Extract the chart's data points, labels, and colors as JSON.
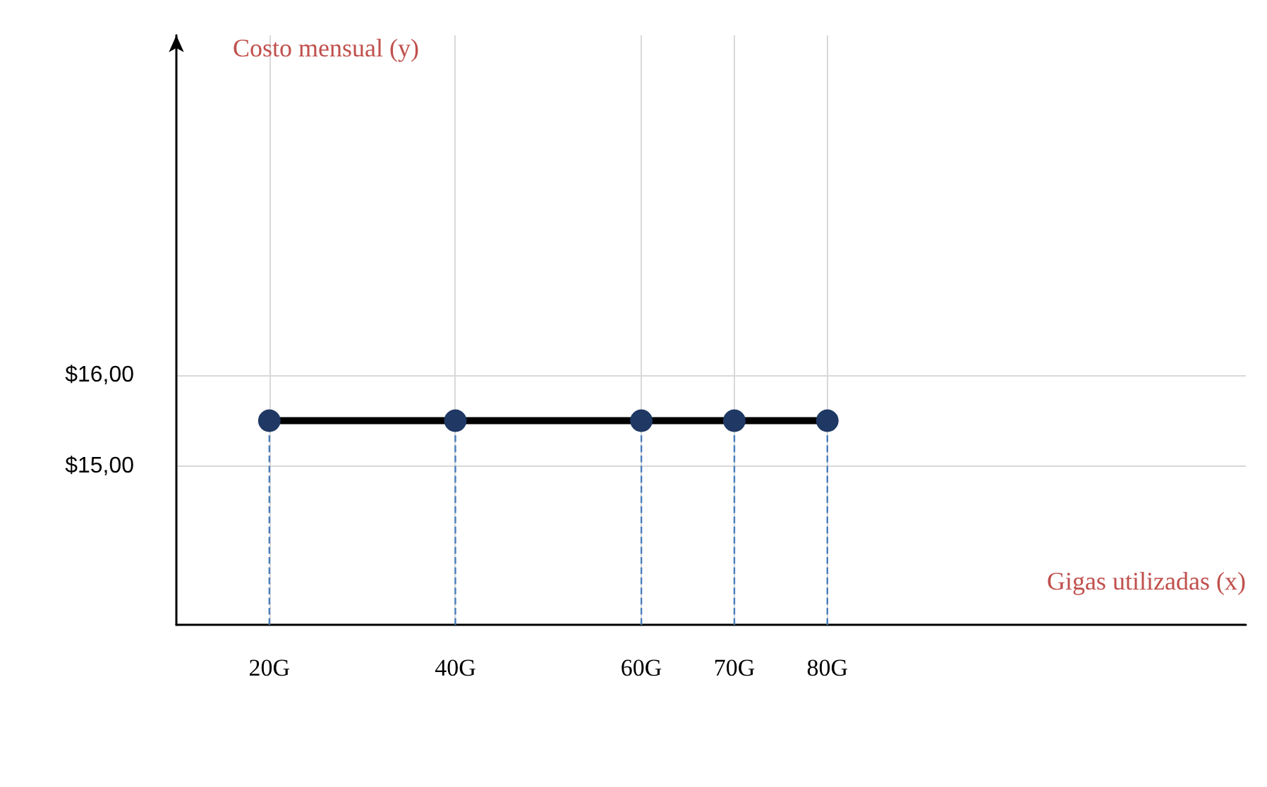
{
  "chart_data": {
    "type": "line",
    "xlabel": "Gigas utilizadas (x)",
    "ylabel": "Costo mensual (y)",
    "x": [
      20,
      40,
      60,
      70,
      80
    ],
    "series": [
      {
        "color": "#1f3864",
        "values": [
          15.5,
          15.5,
          15.5,
          15.5,
          15.5
        ]
      },
      {
        "x": [
          20,
          20
        ],
        "values": [
          13.25,
          15.5
        ],
        "color": "#4a7ebb",
        "line_style": "dashed",
        "marker": "none"
      },
      {
        "x": [
          40,
          40
        ],
        "values": [
          13.25,
          15.5
        ],
        "color": "#4a7ebb",
        "line_style": "dashed",
        "marker": "none"
      },
      {
        "x": [
          60,
          60
        ],
        "values": [
          13.25,
          15.5
        ],
        "color": "#4a7ebb",
        "line_style": "dashed",
        "marker": "none"
      },
      {
        "x": [
          70,
          70
        ],
        "values": [
          13.25,
          15.5
        ],
        "color": "#4a7ebb",
        "line_style": "dashed",
        "marker": "none"
      },
      {
        "x": [
          80,
          80
        ],
        "values": [
          13.25,
          15.5
        ],
        "color": "#4a7ebb",
        "line_style": "dashed",
        "marker": "none"
      }
    ],
    "xlim": [
      10,
      125
    ],
    "xticks": [
      {
        "value": 20,
        "label": "20G"
      },
      {
        "value": 40,
        "label": "40G"
      },
      {
        "value": 60,
        "label": "60G"
      },
      {
        "value": 70,
        "label": "70G"
      },
      {
        "value": 80,
        "label": "80G"
      }
    ],
    "ylim": [
      13.25,
      19.75
    ],
    "yticks": [
      {
        "value": 15,
        "label": "$15,00"
      },
      {
        "value": 16,
        "label": "$16,00"
      }
    ],
    "grid": true,
    "marker": "circle",
    "line_style": "solid"
  }
}
